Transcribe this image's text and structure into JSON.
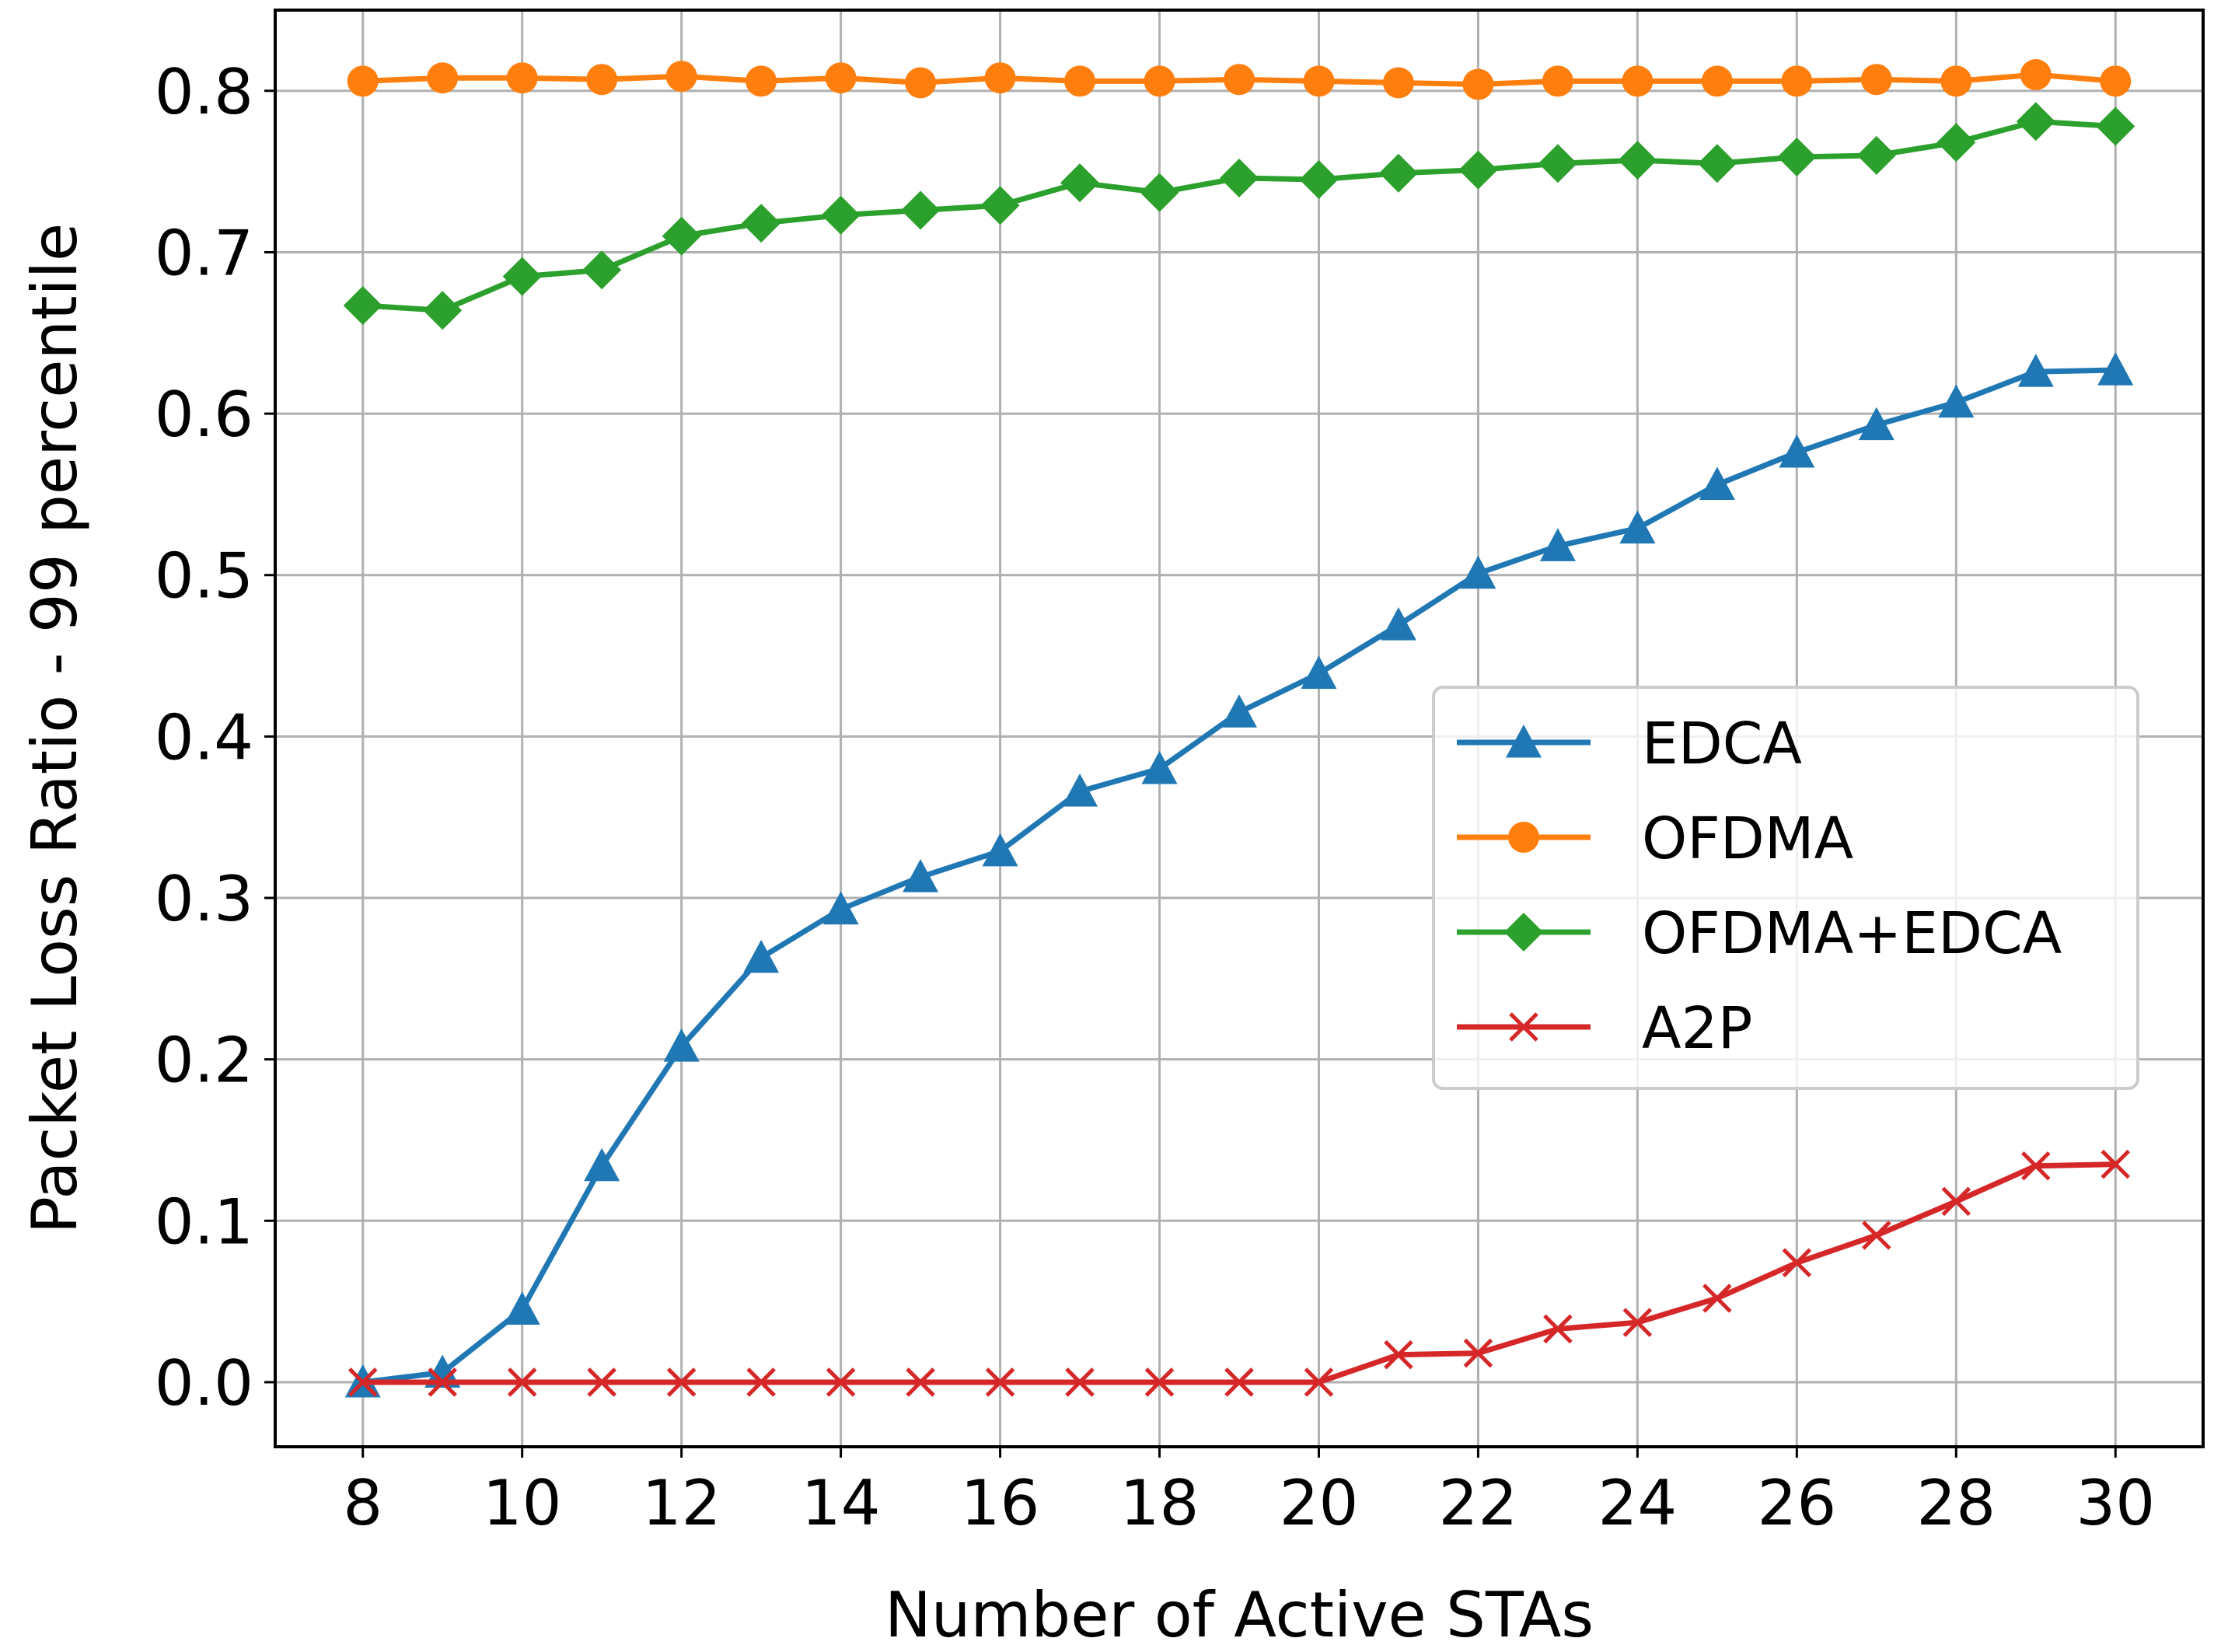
{
  "chart_data": {
    "type": "line",
    "title": "",
    "xlabel": "Number of Active STAs",
    "ylabel": "Packet Loss Ratio - 99 percentile",
    "xlim": [
      6.9,
      31.1
    ],
    "ylim": [
      -0.04,
      0.85
    ],
    "xticks": [
      8,
      10,
      12,
      14,
      16,
      18,
      20,
      22,
      24,
      26,
      28,
      30
    ],
    "yticks": [
      0.0,
      0.1,
      0.2,
      0.3,
      0.4,
      0.5,
      0.6,
      0.7,
      0.8
    ],
    "ytick_labels": [
      "0.0",
      "0.1",
      "0.2",
      "0.3",
      "0.4",
      "0.5",
      "0.6",
      "0.7",
      "0.8"
    ],
    "grid": true,
    "legend_position": "center-right",
    "x": [
      8,
      9,
      10,
      11,
      12,
      13,
      14,
      15,
      16,
      17,
      18,
      19,
      20,
      21,
      22,
      23,
      24,
      25,
      26,
      27,
      28,
      29,
      30
    ],
    "series": [
      {
        "name": "EDCA",
        "color": "#1f77b4",
        "marker": "triangle",
        "values": [
          0.0,
          0.006,
          0.045,
          0.134,
          0.208,
          0.263,
          0.293,
          0.313,
          0.329,
          0.366,
          0.38,
          0.415,
          0.439,
          0.469,
          0.501,
          0.518,
          0.529,
          0.556,
          0.576,
          0.593,
          0.607,
          0.626,
          0.627
        ]
      },
      {
        "name": "OFDMA",
        "color": "#ff7f0e",
        "marker": "circle",
        "values": [
          0.806,
          0.808,
          0.808,
          0.807,
          0.809,
          0.806,
          0.808,
          0.805,
          0.808,
          0.806,
          0.806,
          0.807,
          0.806,
          0.805,
          0.804,
          0.806,
          0.806,
          0.806,
          0.806,
          0.807,
          0.806,
          0.81,
          0.806
        ]
      },
      {
        "name": "OFDMA+EDCA",
        "color": "#2ca02c",
        "marker": "diamond",
        "values": [
          0.667,
          0.664,
          0.685,
          0.689,
          0.71,
          0.718,
          0.723,
          0.726,
          0.729,
          0.743,
          0.737,
          0.746,
          0.745,
          0.749,
          0.751,
          0.755,
          0.757,
          0.755,
          0.759,
          0.76,
          0.768,
          0.781,
          0.778
        ]
      },
      {
        "name": "A2P",
        "color": "#d62728",
        "marker": "x",
        "values": [
          0.0,
          0.0,
          0.0,
          0.0,
          0.0,
          0.0,
          0.0,
          0.0,
          0.0,
          0.0,
          0.0,
          0.0,
          0.0,
          0.017,
          0.018,
          0.033,
          0.037,
          0.052,
          0.074,
          0.091,
          0.112,
          0.134,
          0.135
        ]
      }
    ]
  }
}
